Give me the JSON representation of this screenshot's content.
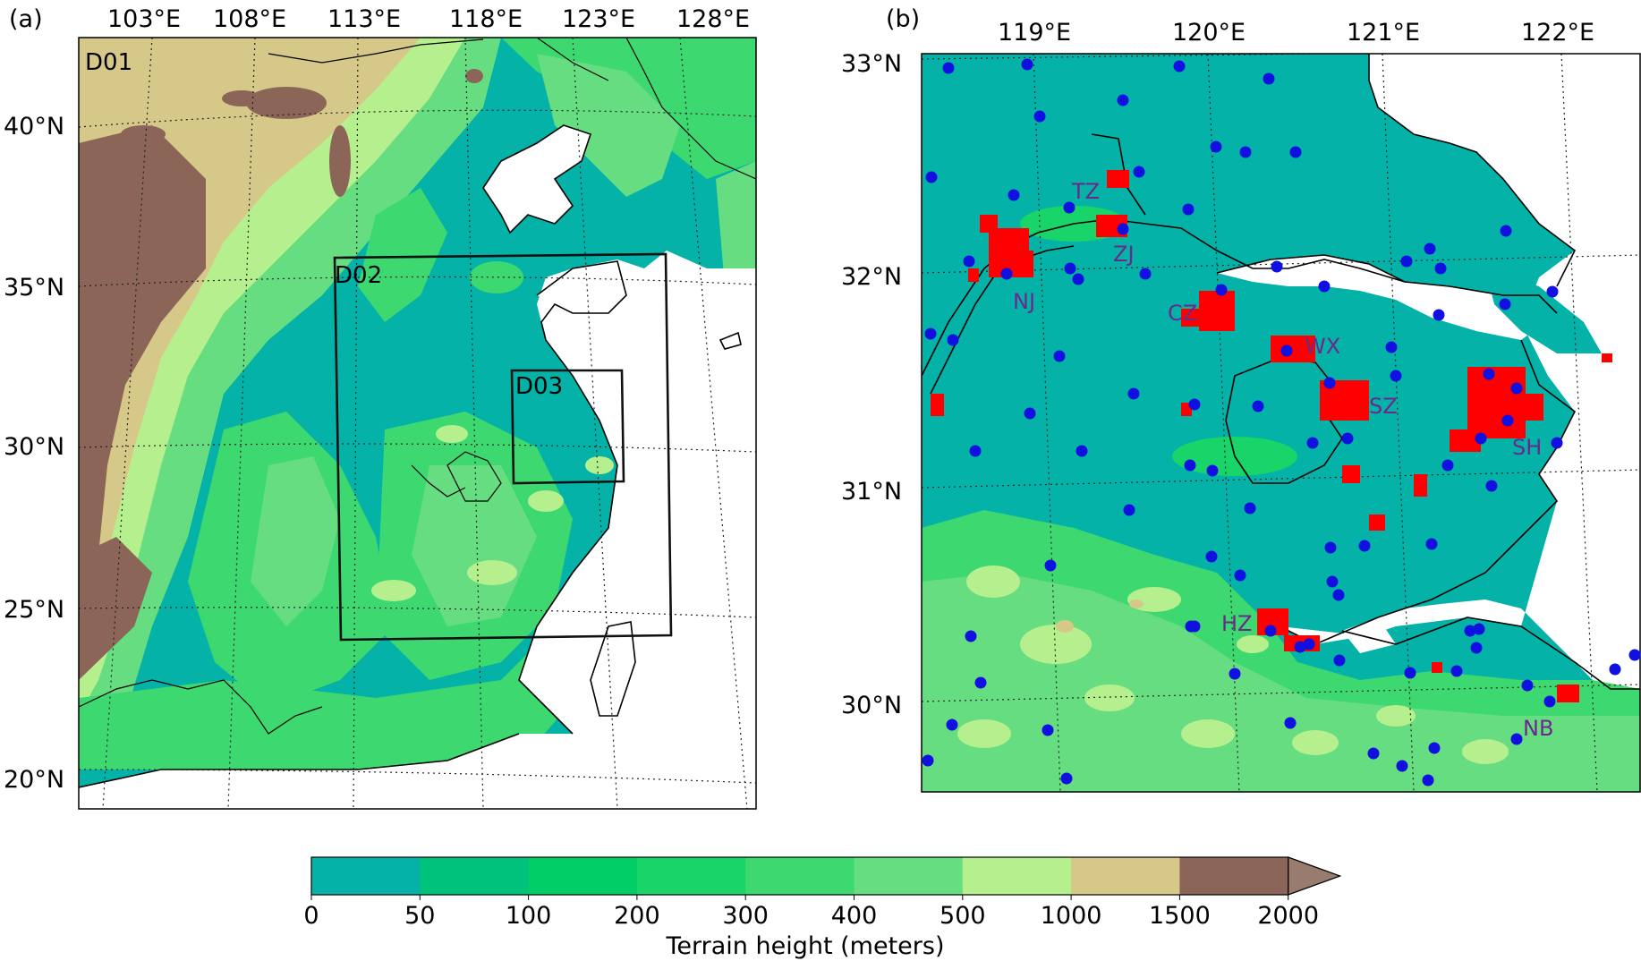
{
  "panel_a": {
    "label": "(a)",
    "lon_labels": [
      "103°E",
      "108°E",
      "113°E",
      "118°E",
      "123°E",
      "128°E"
    ],
    "lat_labels": [
      "40°N",
      "35°N",
      "30°N",
      "25°N",
      "20°N"
    ],
    "domains": [
      "D01",
      "D02",
      "D03"
    ]
  },
  "panel_b": {
    "label": "(b)",
    "lon_labels": [
      "119°E",
      "120°E",
      "121°E",
      "122°E"
    ],
    "lat_labels": [
      "33°N",
      "32°N",
      "31°N",
      "30°N"
    ],
    "cities": [
      "TZ",
      "ZJ",
      "NJ",
      "CZ",
      "WX",
      "SZ",
      "SH",
      "HZ",
      "NB"
    ]
  },
  "colorbar": {
    "title": "Terrain height (meters)",
    "ticks": [
      "0",
      "50",
      "100",
      "200",
      "300",
      "400",
      "500",
      "1000",
      "1500",
      "2000"
    ],
    "colors": [
      "#04b2a8",
      "#00c27a",
      "#00cd66",
      "#19d468",
      "#3dd970",
      "#66dd80",
      "#b6ef8e",
      "#d6c888",
      "#8b6558"
    ],
    "extend": "max"
  },
  "colors": {
    "urban": "#ff0000",
    "station": "#1010e0",
    "city_label": "#6a2a8c",
    "water": "#ffffff"
  }
}
